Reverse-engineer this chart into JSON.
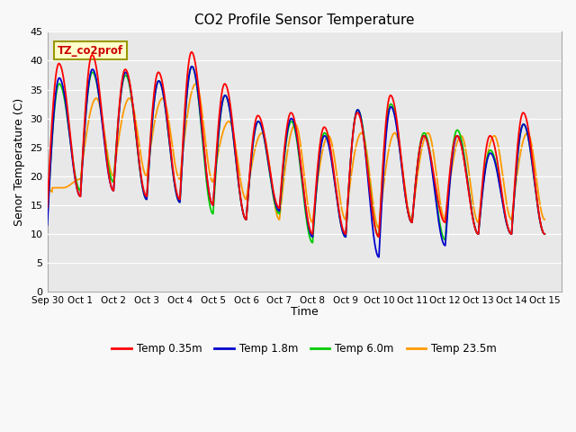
{
  "title": "CO2 Profile Sensor Temperature",
  "ylabel": "Senor Temperature (C)",
  "xlabel": "Time",
  "annotation": "TZ_co2prof",
  "ylim": [
    0,
    45
  ],
  "xlim": [
    0,
    15.5
  ],
  "background_plot": "#e8e8e8",
  "background_fig": "#f8f8f8",
  "series_colors": [
    "#ff0000",
    "#0000cc",
    "#00cc00",
    "#ff9900"
  ],
  "series_labels": [
    "Temp 0.35m",
    "Temp 1.8m",
    "Temp 6.0m",
    "Temp 23.5m"
  ],
  "tick_labels": [
    "Sep 30",
    "Oct 1",
    "Oct 2",
    "Oct 3",
    "Oct 4",
    "Oct 5",
    "Oct 6",
    "Oct 7",
    "Oct 8",
    "Oct 9",
    "Oct 10",
    "Oct 11",
    "Oct 12",
    "Oct 13",
    "Oct 14",
    "Oct 15"
  ],
  "tick_positions": [
    0,
    1,
    2,
    3,
    4,
    5,
    6,
    7,
    8,
    9,
    10,
    11,
    12,
    13,
    14,
    15
  ],
  "yticks": [
    0,
    5,
    10,
    15,
    20,
    25,
    30,
    35,
    40,
    45
  ],
  "red_peaks": [
    39.5,
    41.0,
    38.5,
    38.0,
    41.5,
    36.0,
    30.5,
    31.0,
    28.5,
    31.0,
    34.0,
    27.0,
    27.0,
    27.0,
    31.0
  ],
  "red_troughs": [
    14.5,
    16.5,
    17.5,
    16.5,
    16.0,
    15.0,
    12.5,
    14.5,
    10.0,
    10.0,
    9.5,
    12.0,
    12.0,
    10.0,
    10.0
  ],
  "blue_peaks": [
    37.0,
    38.5,
    38.0,
    36.5,
    39.0,
    34.0,
    29.5,
    30.0,
    27.0,
    31.5,
    32.0,
    27.0,
    27.0,
    24.0,
    29.0
  ],
  "blue_troughs": [
    11.5,
    16.5,
    17.5,
    16.0,
    15.5,
    15.0,
    12.5,
    14.0,
    9.5,
    9.5,
    6.0,
    12.0,
    8.0,
    10.0,
    10.0
  ],
  "green_peaks": [
    36.0,
    38.0,
    37.5,
    36.5,
    39.0,
    34.0,
    29.5,
    29.5,
    27.5,
    31.5,
    32.5,
    27.5,
    28.0,
    24.5,
    29.0
  ],
  "green_troughs": [
    12.5,
    17.5,
    19.0,
    16.0,
    15.5,
    13.5,
    12.5,
    13.5,
    8.5,
    9.5,
    9.5,
    12.0,
    9.0,
    10.0,
    10.0
  ],
  "orange_peaks": [
    18.0,
    33.5,
    33.5,
    33.5,
    36.0,
    29.5,
    27.5,
    29.0,
    27.0,
    27.5,
    27.5,
    27.5,
    27.0,
    27.0,
    27.5
  ],
  "orange_troughs": [
    18.0,
    19.5,
    20.0,
    20.0,
    19.5,
    19.0,
    16.0,
    12.5,
    12.0,
    12.5,
    11.0,
    12.5,
    12.5,
    12.0,
    12.5
  ]
}
